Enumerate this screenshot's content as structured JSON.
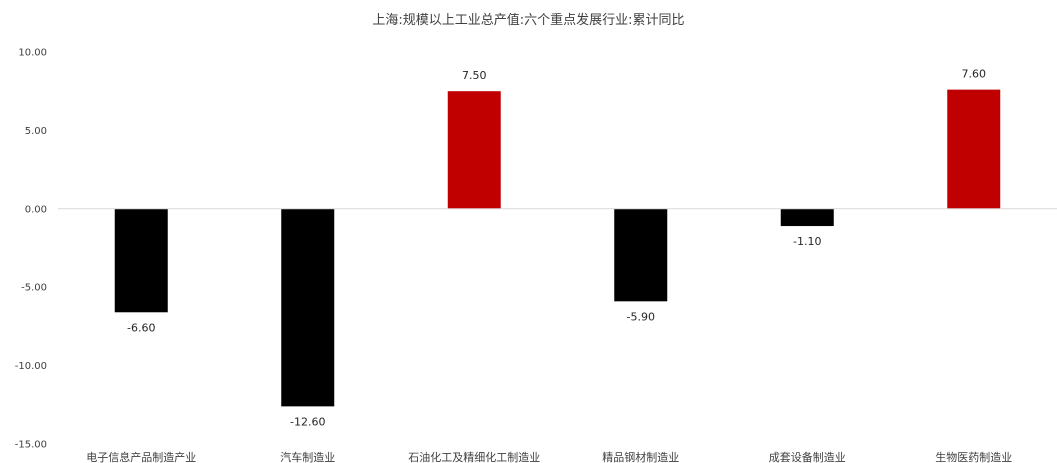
{
  "chart_data": {
    "type": "bar",
    "title": "上海:规模以上工业总产值:六个重点发展行业:累计同比",
    "xlabel": "",
    "ylabel": "",
    "categories": [
      "电子信息产品制造产业",
      "汽车制造业",
      "石油化工及精细化工制造业",
      "精品钢材制造业",
      "成套设备制造业",
      "生物医药制造业"
    ],
    "values": [
      -6.6,
      -12.6,
      7.5,
      -5.9,
      -1.1,
      7.6
    ],
    "data_labels": [
      "-6.60",
      "-12.60",
      "7.50",
      "-5.90",
      "-1.10",
      "7.60"
    ],
    "ylim": [
      -15,
      10
    ],
    "y_ticks": [
      10,
      5,
      0,
      -5,
      -10,
      -15
    ],
    "y_tick_labels": [
      "10.00",
      "5.00",
      "0.00",
      "-5.00",
      "-10.00",
      "-15.00"
    ],
    "grid": false,
    "legend": "none",
    "colors": {
      "positive": "#c00000",
      "negative": "#000000",
      "axis": "#d9d9d9"
    }
  }
}
